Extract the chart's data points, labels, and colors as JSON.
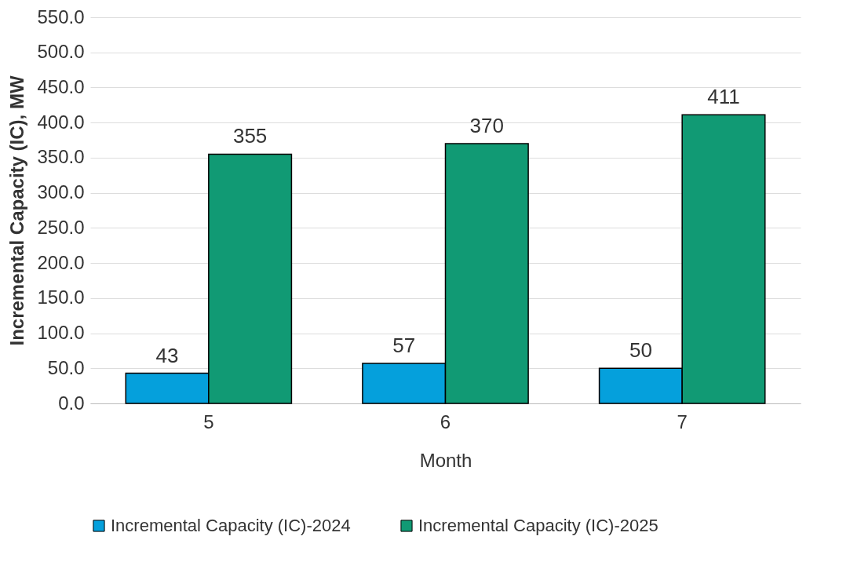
{
  "chart_data": {
    "type": "bar",
    "xlabel": "Month",
    "ylabel": "Incremental Capacity (IC), MW",
    "categories": [
      "5",
      "6",
      "7"
    ],
    "series": [
      {
        "name": "Incremental Capacity (IC)-2024",
        "color": "#05a0dc",
        "values": [
          43,
          57,
          50
        ]
      },
      {
        "name": "Incremental Capacity (IC)-2025",
        "color": "#119a74",
        "values": [
          355,
          370,
          411
        ]
      }
    ],
    "ylim": [
      0,
      550
    ],
    "yticks": [
      {
        "value": 0,
        "label": "0.0"
      },
      {
        "value": 50,
        "label": "50.0"
      },
      {
        "value": 100,
        "label": "100.0"
      },
      {
        "value": 150,
        "label": "150.0"
      },
      {
        "value": 200,
        "label": "200.0"
      },
      {
        "value": 250,
        "label": "250.0"
      },
      {
        "value": 300,
        "label": "300.0"
      },
      {
        "value": 350,
        "label": "350.0"
      },
      {
        "value": 400,
        "label": "400.0"
      },
      {
        "value": 450,
        "label": "450.0"
      },
      {
        "value": 500,
        "label": "500.0"
      },
      {
        "value": 550,
        "label": "550.0"
      }
    ],
    "grid": "y",
    "legend": "bottom",
    "data_labels": true
  }
}
